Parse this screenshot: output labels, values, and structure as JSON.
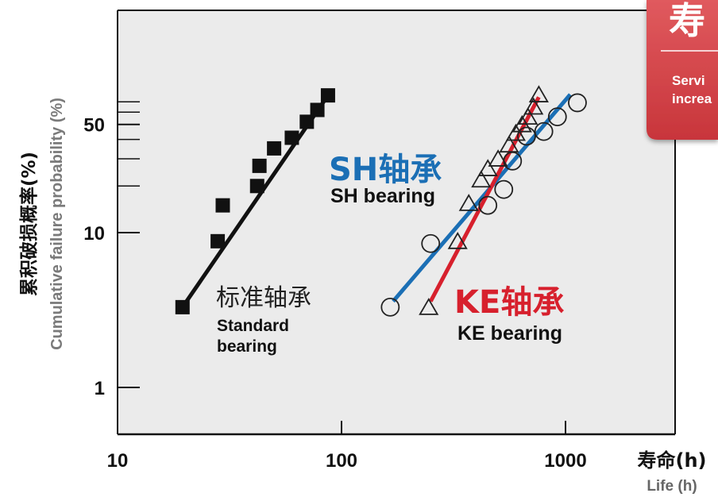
{
  "chart_data": {
    "type": "scatter",
    "x_scale": "log",
    "y_scale": "log",
    "xlim": [
      10,
      3000
    ],
    "ylim": [
      0.5,
      90
    ],
    "x_ticks": [
      10,
      100,
      1000
    ],
    "x_tick_labels": [
      "10",
      "100",
      "1000"
    ],
    "y_ticks": [
      1,
      10,
      50
    ],
    "y_tick_labels": [
      "1",
      "10",
      "50"
    ],
    "y_minor_ticks": [
      20,
      30,
      40,
      60,
      70
    ],
    "ylabel_cn": "累积破损概率(%)",
    "ylabel_en": "Cumulative failure probability (%)",
    "xlabel_cn": "寿命(h)",
    "xlabel_en": "Life (h)",
    "grid": false,
    "series": [
      {
        "name": "标准轴承 Standard bearing",
        "marker": "square",
        "color": "#111111",
        "points": [
          {
            "x": 19.5,
            "y": 3.3
          },
          {
            "x": 28,
            "y": 8.8
          },
          {
            "x": 29.5,
            "y": 15
          },
          {
            "x": 42,
            "y": 20
          },
          {
            "x": 43,
            "y": 27
          },
          {
            "x": 50,
            "y": 35
          },
          {
            "x": 60,
            "y": 41
          },
          {
            "x": 70,
            "y": 52
          },
          {
            "x": 78,
            "y": 62
          },
          {
            "x": 87,
            "y": 77
          }
        ],
        "fit_line": [
          {
            "x": 19.5,
            "y": 3.3
          },
          {
            "x": 87,
            "y": 77
          }
        ]
      },
      {
        "name": "SH轴承 SH bearing",
        "marker": "circle",
        "color": "#1b6fb5",
        "points": [
          {
            "x": 165,
            "y": 3.3
          },
          {
            "x": 250,
            "y": 8.5
          },
          {
            "x": 450,
            "y": 15
          },
          {
            "x": 530,
            "y": 19
          },
          {
            "x": 580,
            "y": 29
          },
          {
            "x": 670,
            "y": 42
          },
          {
            "x": 800,
            "y": 45
          },
          {
            "x": 920,
            "y": 56
          },
          {
            "x": 1130,
            "y": 69
          }
        ],
        "fit_line": [
          {
            "x": 170,
            "y": 3.6
          },
          {
            "x": 1050,
            "y": 78
          }
        ]
      },
      {
        "name": "KE轴承 KE bearing",
        "marker": "triangle",
        "color": "#d7202d",
        "points": [
          {
            "x": 245,
            "y": 3.3
          },
          {
            "x": 330,
            "y": 8.8
          },
          {
            "x": 370,
            "y": 15.5
          },
          {
            "x": 420,
            "y": 22
          },
          {
            "x": 450,
            "y": 26
          },
          {
            "x": 500,
            "y": 30
          },
          {
            "x": 560,
            "y": 37
          },
          {
            "x": 600,
            "y": 44
          },
          {
            "x": 640,
            "y": 50
          },
          {
            "x": 680,
            "y": 56
          },
          {
            "x": 720,
            "y": 65
          },
          {
            "x": 760,
            "y": 78
          }
        ],
        "fit_line": [
          {
            "x": 250,
            "y": 3.6
          },
          {
            "x": 760,
            "y": 75
          }
        ]
      }
    ],
    "annotations": [
      {
        "series": 0,
        "cn": "标准轴承",
        "en_lines": [
          "Standard",
          "bearing"
        ]
      },
      {
        "series": 1,
        "cn": "SH轴承",
        "en_lines": [
          "SH bearing"
        ]
      },
      {
        "series": 2,
        "cn": "KE轴承",
        "en_lines": [
          "KE bearing"
        ]
      }
    ]
  },
  "badge": {
    "title_fragment": "寿",
    "lines": [
      "Servi",
      "increa"
    ]
  },
  "colors": {
    "plot_bg": "#ebebeb",
    "axis": "#111111",
    "sh_blue": "#1b6fb5",
    "ke_red": "#d7202d",
    "badge_red": "#dc4a4f"
  }
}
